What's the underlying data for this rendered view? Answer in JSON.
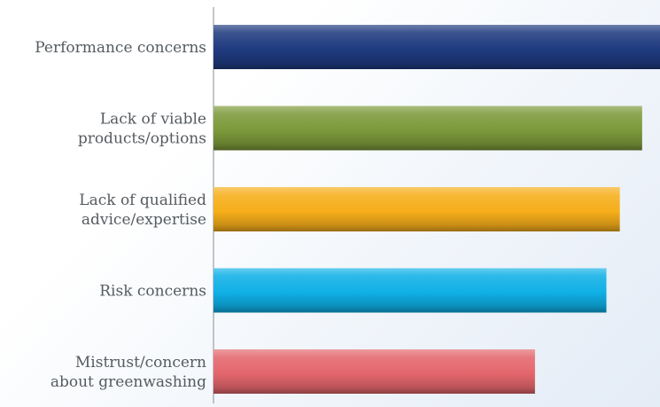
{
  "chart_data": {
    "type": "bar",
    "orientation": "horizontal",
    "categories": [
      [
        "Performance concerns"
      ],
      [
        "Lack of viable",
        "products/options"
      ],
      [
        "Lack of qualified",
        "advice/expertise"
      ],
      [
        "Risk concerns"
      ],
      [
        "Mistrust/concern",
        "about greenwashing"
      ]
    ],
    "values": [
      100,
      96,
      91,
      88,
      72
    ],
    "colors": [
      "#1f3b80",
      "#7c9a3a",
      "#f6ae1a",
      "#0fb0e6",
      "#e4666c"
    ],
    "title": "",
    "xlabel": "",
    "ylabel": "",
    "xlim": [
      0,
      100
    ],
    "grid": false,
    "legend": "none"
  }
}
